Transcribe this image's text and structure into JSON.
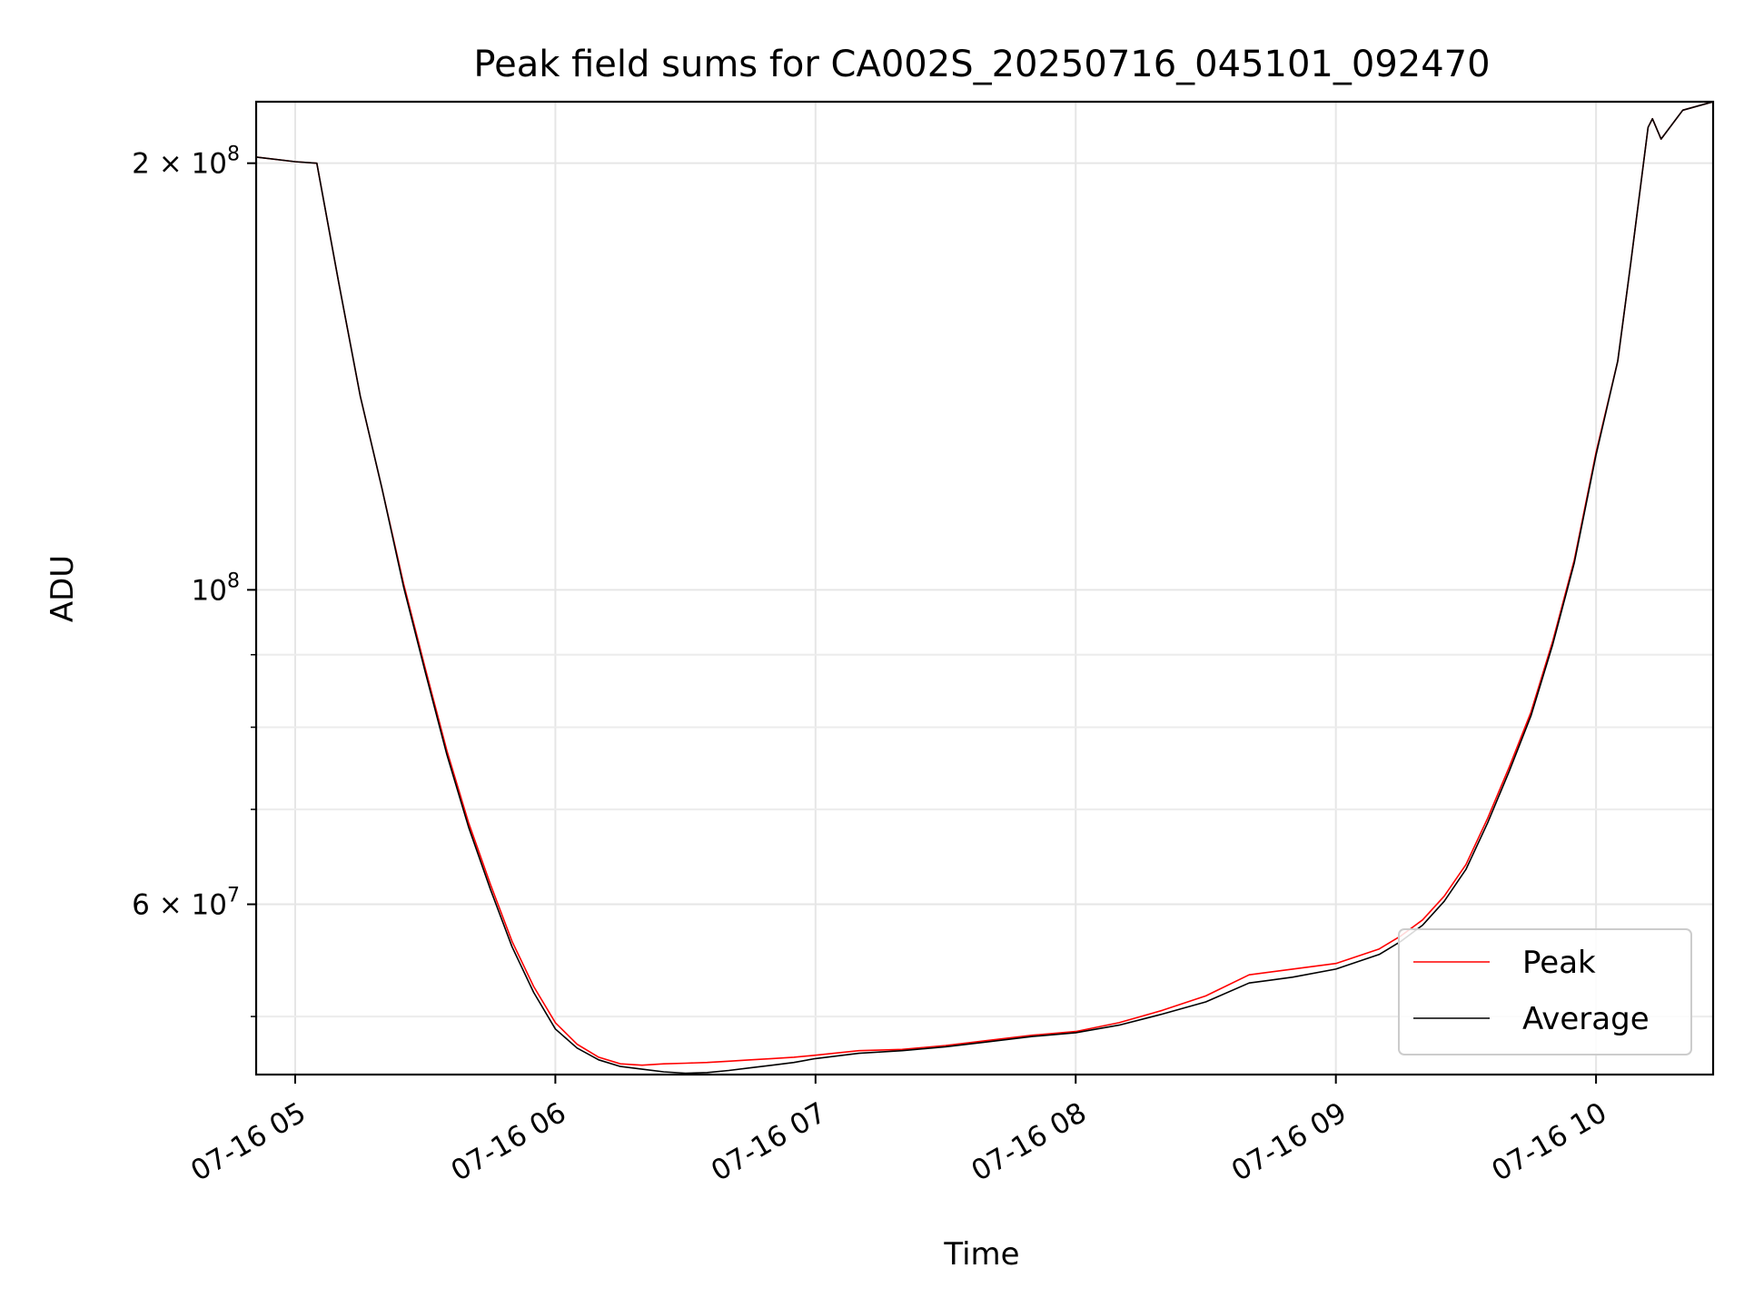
{
  "chart_data": {
    "type": "line",
    "title": "Peak field sums for CA002S_20250716_045101_092470",
    "xlabel": "Time",
    "ylabel": "ADU",
    "yscale": "log",
    "xlim": [
      "2025-07-16 04:51",
      "2025-07-16 10:27"
    ],
    "ylim": [
      45500000,
      221000000
    ],
    "grid": true,
    "legend_position": "lower-right",
    "x_ticks": [
      {
        "value": "2025-07-16 05:00",
        "label": "07-16 05"
      },
      {
        "value": "2025-07-16 06:00",
        "label": "07-16 06"
      },
      {
        "value": "2025-07-16 07:00",
        "label": "07-16 07"
      },
      {
        "value": "2025-07-16 08:00",
        "label": "07-16 08"
      },
      {
        "value": "2025-07-16 09:00",
        "label": "07-16 09"
      },
      {
        "value": "2025-07-16 10:00",
        "label": "07-16 10"
      }
    ],
    "y_ticks": [
      {
        "value": 200000000,
        "label_base": "2 × 10",
        "label_exp": "8"
      },
      {
        "value": 100000000,
        "label_base": "10",
        "label_exp": "8"
      },
      {
        "value": 60000000,
        "label_base": "6 × 10",
        "label_exp": "7"
      }
    ],
    "y_minor_ticks": [
      50000000,
      70000000,
      80000000,
      90000000
    ],
    "series": [
      {
        "name": "Peak",
        "color": "#ff0000",
        "x": [
          "2025-07-16 04:51",
          "2025-07-16 05:00",
          "2025-07-16 05:05",
          "2025-07-16 05:10",
          "2025-07-16 05:15",
          "2025-07-16 05:20",
          "2025-07-16 05:25",
          "2025-07-16 05:30",
          "2025-07-16 05:35",
          "2025-07-16 05:40",
          "2025-07-16 05:45",
          "2025-07-16 05:50",
          "2025-07-16 05:55",
          "2025-07-16 06:00",
          "2025-07-16 06:05",
          "2025-07-16 06:10",
          "2025-07-16 06:15",
          "2025-07-16 06:20",
          "2025-07-16 06:25",
          "2025-07-16 06:30",
          "2025-07-16 06:35",
          "2025-07-16 06:40",
          "2025-07-16 06:45",
          "2025-07-16 06:50",
          "2025-07-16 06:55",
          "2025-07-16 07:00",
          "2025-07-16 07:10",
          "2025-07-16 07:20",
          "2025-07-16 07:30",
          "2025-07-16 07:40",
          "2025-07-16 07:50",
          "2025-07-16 08:00",
          "2025-07-16 08:10",
          "2025-07-16 08:20",
          "2025-07-16 08:30",
          "2025-07-16 08:40",
          "2025-07-16 08:50",
          "2025-07-16 09:00",
          "2025-07-16 09:10",
          "2025-07-16 09:15",
          "2025-07-16 09:20",
          "2025-07-16 09:25",
          "2025-07-16 09:30",
          "2025-07-16 09:35",
          "2025-07-16 09:40",
          "2025-07-16 09:45",
          "2025-07-16 09:50",
          "2025-07-16 09:55",
          "2025-07-16 10:00",
          "2025-07-16 10:05",
          "2025-07-16 10:08",
          "2025-07-16 10:12",
          "2025-07-16 10:13",
          "2025-07-16 10:15",
          "2025-07-16 10:20",
          "2025-07-16 10:27"
        ],
        "y": [
          202000000,
          200500000,
          200000000,
          165000000,
          137000000,
          118000000,
          101000000,
          88000000,
          77000000,
          68500000,
          62000000,
          56500000,
          52500000,
          49500000,
          47800000,
          46800000,
          46300000,
          46200000,
          46300000,
          46350000,
          46400000,
          46500000,
          46600000,
          46700000,
          46800000,
          46950000,
          47300000,
          47400000,
          47700000,
          48100000,
          48500000,
          48800000,
          49500000,
          50500000,
          51700000,
          53500000,
          54000000,
          54500000,
          55800000,
          57000000,
          58500000,
          60800000,
          64000000,
          69000000,
          75000000,
          82000000,
          92000000,
          105000000,
          125000000,
          145000000,
          170000000,
          212000000,
          215000000,
          208000000,
          218000000,
          221000000
        ]
      },
      {
        "name": "Average",
        "color": "#000000",
        "x": [
          "2025-07-16 04:51",
          "2025-07-16 05:00",
          "2025-07-16 05:05",
          "2025-07-16 05:10",
          "2025-07-16 05:15",
          "2025-07-16 05:20",
          "2025-07-16 05:25",
          "2025-07-16 05:30",
          "2025-07-16 05:35",
          "2025-07-16 05:40",
          "2025-07-16 05:45",
          "2025-07-16 05:50",
          "2025-07-16 05:55",
          "2025-07-16 06:00",
          "2025-07-16 06:05",
          "2025-07-16 06:10",
          "2025-07-16 06:15",
          "2025-07-16 06:20",
          "2025-07-16 06:25",
          "2025-07-16 06:30",
          "2025-07-16 06:35",
          "2025-07-16 06:40",
          "2025-07-16 06:45",
          "2025-07-16 06:50",
          "2025-07-16 06:55",
          "2025-07-16 07:00",
          "2025-07-16 07:10",
          "2025-07-16 07:20",
          "2025-07-16 07:30",
          "2025-07-16 07:40",
          "2025-07-16 07:50",
          "2025-07-16 08:00",
          "2025-07-16 08:10",
          "2025-07-16 08:20",
          "2025-07-16 08:30",
          "2025-07-16 08:40",
          "2025-07-16 08:50",
          "2025-07-16 09:00",
          "2025-07-16 09:10",
          "2025-07-16 09:15",
          "2025-07-16 09:20",
          "2025-07-16 09:25",
          "2025-07-16 09:30",
          "2025-07-16 09:35",
          "2025-07-16 09:40",
          "2025-07-16 09:45",
          "2025-07-16 09:50",
          "2025-07-16 09:55",
          "2025-07-16 10:00",
          "2025-07-16 10:05",
          "2025-07-16 10:08",
          "2025-07-16 10:12",
          "2025-07-16 10:13",
          "2025-07-16 10:15",
          "2025-07-16 10:20",
          "2025-07-16 10:27"
        ],
        "y": [
          202000000,
          200500000,
          200000000,
          165000000,
          137000000,
          118000000,
          100500000,
          87500000,
          76500000,
          68000000,
          61500000,
          56000000,
          52000000,
          49000000,
          47500000,
          46600000,
          46100000,
          45900000,
          45700000,
          45600000,
          45650000,
          45800000,
          46000000,
          46200000,
          46400000,
          46700000,
          47100000,
          47300000,
          47600000,
          48000000,
          48400000,
          48700000,
          49300000,
          50200000,
          51200000,
          52800000,
          53300000,
          54000000,
          55300000,
          56500000,
          58000000,
          60300000,
          63500000,
          68500000,
          74500000,
          81500000,
          91500000,
          104500000,
          124500000,
          145000000,
          170000000,
          212000000,
          215000000,
          208000000,
          218000000,
          221000000
        ]
      }
    ]
  }
}
